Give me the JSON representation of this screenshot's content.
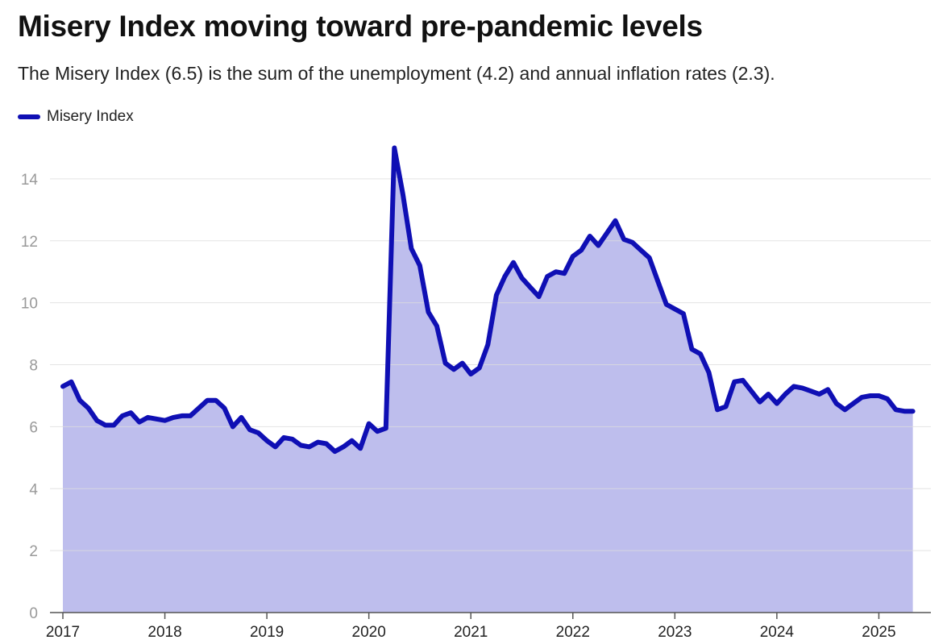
{
  "title": "Misery Index moving toward pre-pandemic levels",
  "subtitle": "The Misery Index (6.5) is the sum of the unemployment (4.2) and annual inflation rates (2.3).",
  "chart_data": {
    "type": "area",
    "title": "Misery Index moving toward pre-pandemic levels",
    "subtitle": "The Misery Index (6.5) is the sum of the unemployment (4.2) and annual inflation rates (2.3).",
    "xlabel": "",
    "ylabel": "",
    "xlim": [
      2017,
      2025.36
    ],
    "ylim": [
      0,
      15
    ],
    "y_ticks": [
      0,
      2,
      4,
      6,
      8,
      10,
      12,
      14
    ],
    "x_ticks": [
      "2017",
      "2018",
      "2019",
      "2020",
      "2021",
      "2022",
      "2023",
      "2024",
      "2025"
    ],
    "grid": true,
    "legend_position": "top-left",
    "colors": {
      "line": "#0f0fb4",
      "fill": "#bebeed",
      "grid": "#dddddd",
      "tick": "#999999"
    },
    "series": [
      {
        "name": "Misery Index",
        "start_year": 2017,
        "frequency": "monthly",
        "values": [
          7.3,
          7.45,
          6.85,
          6.6,
          6.2,
          6.05,
          6.05,
          6.35,
          6.45,
          6.15,
          6.3,
          6.25,
          6.2,
          6.3,
          6.35,
          6.35,
          6.6,
          6.85,
          6.85,
          6.6,
          6.0,
          6.3,
          5.9,
          5.8,
          5.55,
          5.35,
          5.65,
          5.6,
          5.4,
          5.35,
          5.5,
          5.45,
          5.2,
          5.35,
          5.55,
          5.3,
          6.1,
          5.85,
          5.95,
          15.0,
          13.5,
          11.75,
          11.2,
          9.7,
          9.25,
          8.05,
          7.85,
          8.05,
          7.7,
          7.9,
          8.65,
          10.25,
          10.85,
          11.3,
          10.8,
          10.5,
          10.2,
          10.85,
          11.0,
          10.95,
          11.5,
          11.7,
          12.15,
          11.85,
          12.25,
          12.65,
          12.05,
          11.95,
          11.7,
          11.45,
          10.7,
          9.95,
          9.8,
          9.65,
          8.5,
          8.35,
          7.75,
          6.55,
          6.65,
          7.45,
          7.5,
          7.15,
          6.8,
          7.05,
          6.75,
          7.05,
          7.3,
          7.25,
          7.15,
          7.05,
          7.2,
          6.75,
          6.55,
          6.75,
          6.95,
          7.0,
          7.0,
          6.9,
          6.55,
          6.5,
          6.5
        ]
      }
    ]
  }
}
